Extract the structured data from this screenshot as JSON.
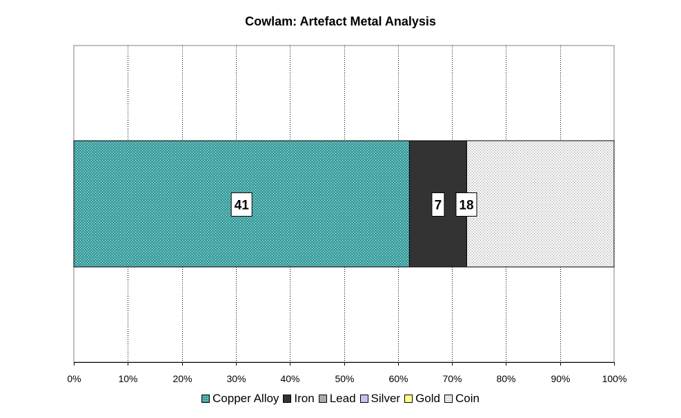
{
  "chart_data": {
    "type": "bar",
    "orientation": "horizontal",
    "stacked": "percent",
    "title": "Cowlam: Artefact Metal Analysis",
    "categories": [
      ""
    ],
    "series": [
      {
        "name": "Copper Alloy",
        "values": [
          41
        ],
        "color": "#3a9e9e",
        "pattern": "speckled"
      },
      {
        "name": "Iron",
        "values": [
          7
        ],
        "color": "#333333",
        "pattern": "solid"
      },
      {
        "name": "Lead",
        "values": [
          0
        ],
        "color": "#7a7a7a",
        "pattern": "checkered"
      },
      {
        "name": "Silver",
        "values": [
          0
        ],
        "color": "#c4c4ec",
        "pattern": "solid"
      },
      {
        "name": "Gold",
        "values": [
          0
        ],
        "color": "#ffff80",
        "pattern": "solid"
      },
      {
        "name": "Coin",
        "values": [
          18
        ],
        "color": "#e2e2e2",
        "pattern": "dotted"
      }
    ],
    "data_labels": [
      "41",
      "7",
      "0",
      "18"
    ],
    "xlim": [
      0,
      100
    ],
    "x_ticks": [
      "0%",
      "10%",
      "20%",
      "30%",
      "40%",
      "50%",
      "60%",
      "70%",
      "80%",
      "90%",
      "100%"
    ],
    "grid": "vertical-dotted",
    "legend_position": "bottom"
  }
}
